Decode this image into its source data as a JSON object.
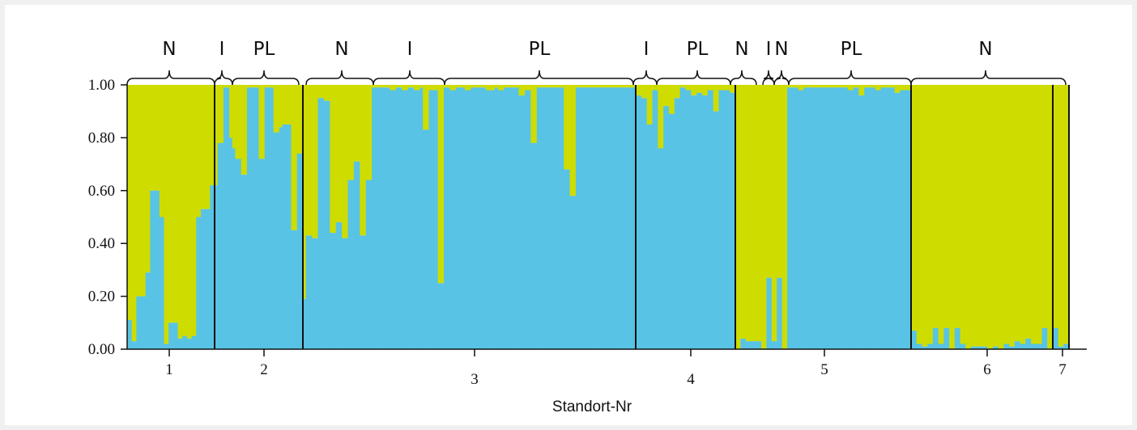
{
  "colors": {
    "background": "#ffffff",
    "page": "#f0f0f0",
    "cluster_a": "#58c3e4",
    "cluster_b": "#cedc00",
    "lines": "#111111"
  },
  "chart_data": {
    "type": "bar",
    "stacked": true,
    "description_of_values": "proportion of membership in cluster A (blue); remainder is cluster B (yellow-green)",
    "xlabel": "Standort-Nr",
    "ylabel": "",
    "ylim": [
      0,
      1
    ],
    "yticks": [
      "0.00",
      "0.20",
      "0.40",
      "0.60",
      "0.80",
      "1.00"
    ],
    "series_names": [
      "",
      ""
    ],
    "sites": [
      {
        "label": "1",
        "blue": [
          0.11,
          0.03,
          0.2,
          0.2,
          0.29,
          0.6,
          0.6,
          0.5,
          0.02,
          0.1,
          0.1,
          0.04,
          0.05,
          0.04,
          0.05,
          0.5,
          0.53,
          0.53,
          0.62
        ]
      },
      {
        "label": "2",
        "blue": [
          0.62,
          0.78,
          0.78,
          0.99,
          0.99,
          0.8,
          0.76,
          0.72,
          0.72,
          0.66,
          0.66,
          0.99,
          0.99,
          0.99,
          0.99,
          0.72,
          0.72,
          0.99,
          0.99,
          0.99,
          0.82,
          0.82,
          0.84,
          0.85,
          0.85,
          0.85,
          0.45,
          0.45,
          0.74,
          0.74
        ]
      },
      {
        "label": "3",
        "blue": [
          0.19,
          0.43,
          0.43,
          0.42,
          0.42,
          0.95,
          0.95,
          0.94,
          0.94,
          0.44,
          0.44,
          0.48,
          0.48,
          0.42,
          0.42,
          0.64,
          0.64,
          0.71,
          0.71,
          0.43,
          0.43,
          0.64,
          0.64,
          0.99,
          0.99,
          0.99,
          0.99,
          0.99,
          0.99,
          0.98,
          0.98,
          0.99,
          0.99,
          0.98,
          0.98,
          0.99,
          0.99,
          0.98,
          0.98,
          0.99,
          0.83,
          0.83,
          0.98,
          0.98,
          0.98,
          0.25,
          0.25,
          0.99,
          0.99,
          0.98,
          0.98,
          0.99,
          0.99,
          0.99,
          0.98,
          0.98,
          0.99,
          0.99,
          0.99,
          0.99,
          0.99,
          0.98,
          0.98,
          0.98,
          0.99,
          0.98,
          0.98,
          0.99,
          0.99,
          0.99,
          0.99,
          0.99,
          0.96,
          0.96,
          0.98,
          0.98,
          0.78,
          0.78,
          0.99,
          0.99,
          0.99,
          0.99,
          0.99,
          0.99,
          0.99,
          0.99,
          0.99,
          0.68,
          0.68,
          0.58,
          0.58,
          0.99,
          0.99,
          0.99,
          0.99,
          0.99,
          0.99,
          0.99,
          0.99,
          0.99,
          0.99,
          0.99,
          0.99,
          0.99,
          0.99,
          0.99,
          0.99,
          0.99,
          0.99,
          0.99,
          0.99
        ]
      },
      {
        "label": "4",
        "blue": [
          0.96,
          0.96,
          0.95,
          0.95,
          0.85,
          0.85,
          0.98,
          0.98,
          0.76,
          0.76,
          0.92,
          0.92,
          0.89,
          0.89,
          0.95,
          0.95,
          0.99,
          0.99,
          0.98,
          0.98,
          0.96,
          0.96,
          0.97,
          0.97,
          0.96,
          0.96,
          0.98,
          0.98,
          0.9,
          0.9,
          0.98,
          0.98,
          0.98,
          0.98,
          0.97,
          0.97
        ]
      },
      {
        "label": "",
        "blue": [
          0.0,
          0.0,
          0.04,
          0.04,
          0.03,
          0.03,
          0.03,
          0.03,
          0.03,
          0.03,
          0.0,
          0.0,
          0.27,
          0.27,
          0.03,
          0.03,
          0.27,
          0.27,
          0.0,
          0.0
        ]
      },
      {
        "label": "5",
        "blue": [
          0.99,
          0.99,
          0.99,
          0.99,
          0.98,
          0.98,
          0.99,
          0.99,
          0.99,
          0.99,
          0.99,
          0.99,
          0.99,
          0.99,
          0.99,
          0.99,
          0.99,
          0.99,
          0.99,
          0.99,
          0.99,
          0.99,
          0.98,
          0.98,
          0.99,
          0.99,
          0.96,
          0.96,
          0.99,
          0.99,
          0.99,
          0.99,
          0.98,
          0.98,
          0.99,
          0.99,
          0.99,
          0.99,
          0.99,
          0.97,
          0.97,
          0.98,
          0.98,
          0.98,
          0.98
        ]
      },
      {
        "label": "6",
        "blue": [
          0.07,
          0.07,
          0.02,
          0.02,
          0.01,
          0.01,
          0.02,
          0.02,
          0.08,
          0.08,
          0.02,
          0.02,
          0.08,
          0.08,
          0.0,
          0.0,
          0.08,
          0.08,
          0.02,
          0.02,
          0.0,
          0.0,
          0.01,
          0.01,
          0.01,
          0.01,
          0.01,
          0.01,
          0.0,
          0.0,
          0.01,
          0.01,
          0.0,
          0.0,
          0.02,
          0.02,
          0.01,
          0.01,
          0.03,
          0.03,
          0.02,
          0.02,
          0.04,
          0.04,
          0.02,
          0.02,
          0.02,
          0.02,
          0.08,
          0.08,
          0.0,
          0.0
        ]
      },
      {
        "label": "7",
        "blue": [
          0.08,
          0.08,
          0.01,
          0.01,
          0.02,
          0.02
        ]
      }
    ],
    "groups": [
      {
        "label": "N",
        "site": "1"
      },
      {
        "label": "I",
        "site": "2"
      },
      {
        "label": "PL",
        "site": "2"
      },
      {
        "label": "N",
        "site": "3"
      },
      {
        "label": "I",
        "site": "3"
      },
      {
        "label": "PL",
        "site": "3"
      },
      {
        "label": "I",
        "site": "4"
      },
      {
        "label": "PL",
        "site": "4"
      },
      {
        "label": "N",
        "site": ""
      },
      {
        "label": "I",
        "site": ""
      },
      {
        "label": "N",
        "site": ""
      },
      {
        "label": "PL",
        "site": "5"
      },
      {
        "label": "N",
        "site": "6-7"
      }
    ]
  }
}
